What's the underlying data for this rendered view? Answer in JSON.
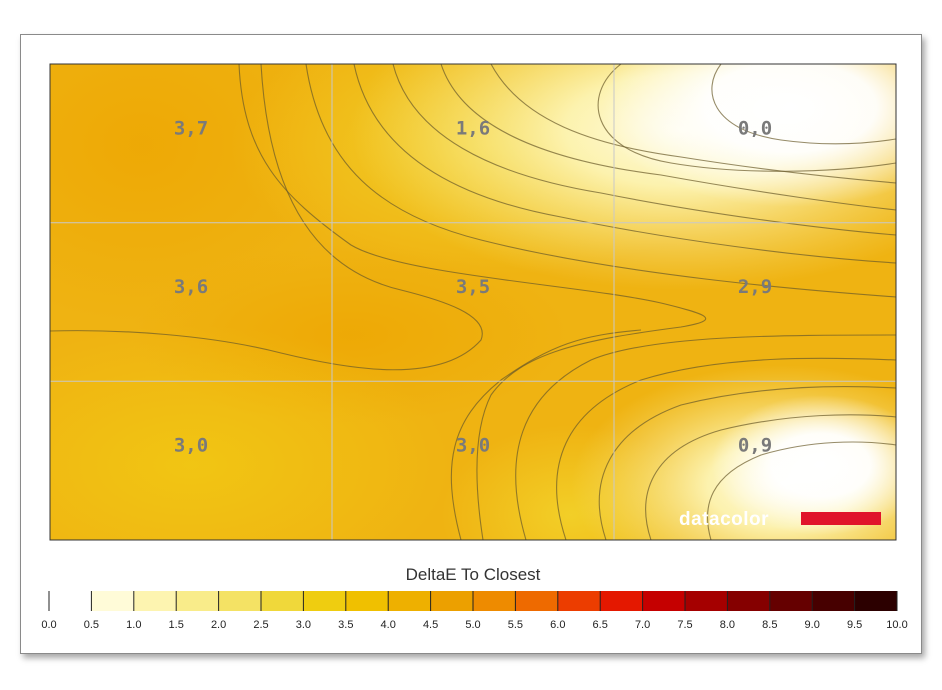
{
  "chart_data": {
    "type": "heatmap",
    "title": "",
    "grid": true,
    "rows": 3,
    "cols": 3,
    "values": [
      [
        3.7,
        1.6,
        0.0
      ],
      [
        3.6,
        3.5,
        2.9
      ],
      [
        3.0,
        3.0,
        0.9
      ]
    ],
    "cell_labels": [
      [
        "3,7",
        "1,6",
        "0,0"
      ],
      [
        "3,6",
        "3,5",
        "2,9"
      ],
      [
        "3,0",
        "3,0",
        "0,9"
      ]
    ],
    "colorbar": {
      "title": "DeltaE To Closest",
      "range": [
        0,
        10
      ],
      "tick_labels": [
        "0.0",
        "0.5",
        "1.0",
        "1.5",
        "2.0",
        "2.5",
        "3.0",
        "3.5",
        "4.0",
        "4.5",
        "5.0",
        "5.5",
        "6.0",
        "6.5",
        "7.0",
        "7.5",
        "8.0",
        "8.5",
        "9.0",
        "9.5",
        "10.0"
      ],
      "colors": [
        "#ffffff",
        "#fffbd8",
        "#fdf4b0",
        "#f9ec8a",
        "#f4e264",
        "#f0d83a",
        "#efcd10",
        "#f0c000",
        "#eeb000",
        "#eca000",
        "#ee8b00",
        "#ee6a00",
        "#ec3d00",
        "#e41800",
        "#c50000",
        "#a50000",
        "#850000",
        "#650000",
        "#470000",
        "#2c0000",
        "#0a0000"
      ]
    },
    "logo": "datacolor",
    "logo_accent_color": "#e0142a"
  }
}
